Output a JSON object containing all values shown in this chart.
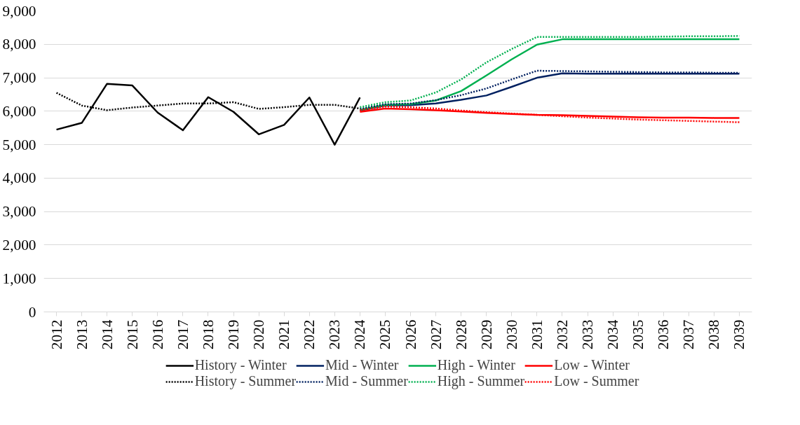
{
  "chart_data": {
    "type": "line",
    "categories": [
      "2012",
      "2013",
      "2014",
      "2015",
      "2016",
      "2017",
      "2018",
      "2019",
      "2020",
      "2021",
      "2022",
      "2023",
      "2024",
      "2025",
      "2026",
      "2027",
      "2028",
      "2029",
      "2030",
      "2031",
      "2032",
      "2033",
      "2034",
      "2035",
      "2036",
      "2037",
      "2038",
      "2039"
    ],
    "ylim": [
      0,
      9000
    ],
    "yticks": [
      {
        "value": 0,
        "label": "0"
      },
      {
        "value": 1000,
        "label": "1,000"
      },
      {
        "value": 2000,
        "label": "2,000"
      },
      {
        "value": 3000,
        "label": "3,000"
      },
      {
        "value": 4000,
        "label": "4,000"
      },
      {
        "value": 5000,
        "label": "5,000"
      },
      {
        "value": 6000,
        "label": "6,000"
      },
      {
        "value": 7000,
        "label": "7,000"
      },
      {
        "value": 8000,
        "label": "8,000"
      },
      {
        "value": 9000,
        "label": "9,000"
      }
    ],
    "grid": "y",
    "legend": "bottom",
    "marker": "none",
    "series": [
      {
        "name": "History - Winter",
        "color": "#000000",
        "line_style": "solid",
        "values": [
          5450,
          5650,
          6820,
          6770,
          5960,
          5430,
          6420,
          5980,
          5310,
          5590,
          6410,
          5000,
          6410,
          null,
          null,
          null,
          null,
          null,
          null,
          null,
          null,
          null,
          null,
          null,
          null,
          null,
          null,
          null
        ]
      },
      {
        "name": "Mid - Winter",
        "color": "#002060",
        "line_style": "solid",
        "values": [
          null,
          null,
          null,
          null,
          null,
          null,
          null,
          null,
          null,
          null,
          null,
          null,
          6020,
          6170,
          6180,
          6230,
          6340,
          6470,
          6730,
          7000,
          7130,
          7120,
          7120,
          7120,
          7120,
          7120,
          7120,
          7120
        ]
      },
      {
        "name": "High - Winter",
        "color": "#00b050",
        "line_style": "solid",
        "values": [
          null,
          null,
          null,
          null,
          null,
          null,
          null,
          null,
          null,
          null,
          null,
          null,
          6040,
          6190,
          6210,
          6320,
          6600,
          7070,
          7550,
          7990,
          8150,
          8150,
          8150,
          8150,
          8150,
          8150,
          8150,
          8150
        ]
      },
      {
        "name": "Low - Winter",
        "color": "#ff0000",
        "line_style": "solid",
        "values": [
          null,
          null,
          null,
          null,
          null,
          null,
          null,
          null,
          null,
          null,
          null,
          null,
          5980,
          6080,
          6060,
          6030,
          5990,
          5950,
          5920,
          5890,
          5880,
          5860,
          5840,
          5820,
          5810,
          5810,
          5800,
          5800
        ]
      },
      {
        "name": "History - Summer",
        "color": "#000000",
        "line_style": "dotted",
        "values": [
          6550,
          6170,
          6030,
          6110,
          6170,
          6230,
          6230,
          6270,
          6070,
          6120,
          6190,
          6190,
          6080,
          null,
          null,
          null,
          null,
          null,
          null,
          null,
          null,
          null,
          null,
          null,
          null,
          null,
          null,
          null
        ]
      },
      {
        "name": "Mid - Summer",
        "color": "#002060",
        "line_style": "dotted",
        "values": [
          null,
          null,
          null,
          null,
          null,
          null,
          null,
          null,
          null,
          null,
          null,
          null,
          6070,
          6210,
          6230,
          6330,
          6480,
          6680,
          6950,
          7210,
          7200,
          7190,
          7180,
          7170,
          7160,
          7160,
          7150,
          7150
        ]
      },
      {
        "name": "High - Summer",
        "color": "#00b050",
        "line_style": "dotted",
        "values": [
          null,
          null,
          null,
          null,
          null,
          null,
          null,
          null,
          null,
          null,
          null,
          null,
          6120,
          6270,
          6320,
          6560,
          6950,
          7460,
          7860,
          8220,
          8220,
          8220,
          8220,
          8220,
          8230,
          8240,
          8240,
          8250
        ]
      },
      {
        "name": "Low - Summer",
        "color": "#ff0000",
        "line_style": "dotted",
        "values": [
          null,
          null,
          null,
          null,
          null,
          null,
          null,
          null,
          null,
          null,
          null,
          null,
          6030,
          6140,
          6120,
          6080,
          6020,
          5970,
          5930,
          5890,
          5850,
          5810,
          5780,
          5750,
          5730,
          5710,
          5690,
          5670
        ]
      }
    ]
  }
}
